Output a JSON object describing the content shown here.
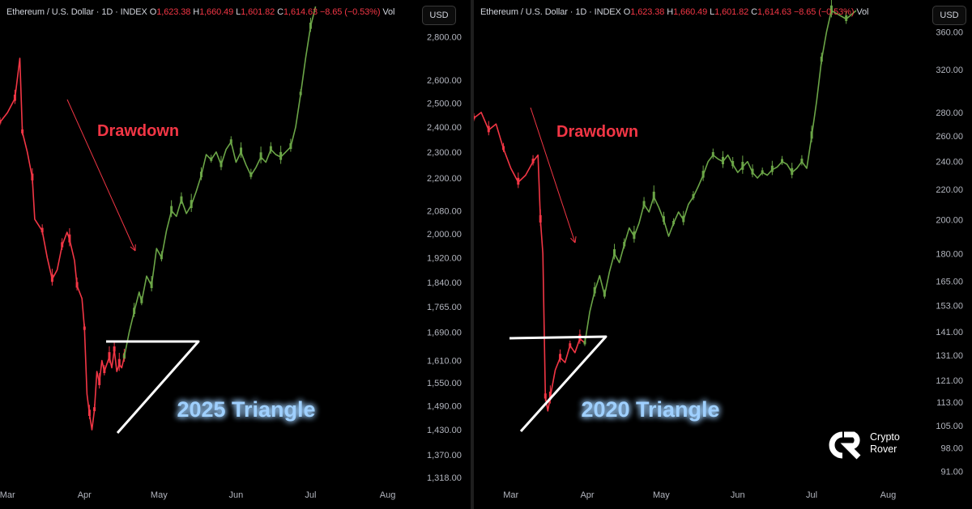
{
  "chart_data": [
    {
      "type": "line",
      "header": {
        "symbol": "Ethereum / U.S. Dollar · 1D · INDEX",
        "o_label": "O",
        "o": "1,623.38",
        "h_label": "H",
        "h": "1,660.49",
        "l_label": "L",
        "l": "1,601.82",
        "c_label": "C",
        "c": "1,614.63",
        "change": "−8.65 (−0.53%)",
        "vol": "Vol"
      },
      "currency": "USD",
      "y_ticks": [
        "2,800.00",
        "2,600.00",
        "2,500.00",
        "2,400.00",
        "2,300.00",
        "2,200.00",
        "2,080.00",
        "2,000.00",
        "1,920.00",
        "1,840.00",
        "1,765.00",
        "1,690.00",
        "1,610.00",
        "1,550.00",
        "1,490.00",
        "1,430.00",
        "1,370.00",
        "1,318.00"
      ],
      "y_tick_values": [
        2800,
        2600,
        2500,
        2400,
        2300,
        2200,
        2080,
        2000,
        1920,
        1840,
        1765,
        1690,
        1610,
        1550,
        1490,
        1430,
        1370,
        1318
      ],
      "x_ticks": [
        "Mar",
        "Apr",
        "May",
        "Jun",
        "Jul",
        "Aug"
      ],
      "x_tick_days": [
        0,
        31,
        61,
        92,
        122,
        153
      ],
      "annotations": {
        "drawdown": "Drawdown",
        "triangle": "2025 Triangle"
      },
      "ylim": [
        1300,
        2950
      ],
      "xlim": [
        -3,
        160
      ],
      "scale": "log",
      "series": [
        {
          "color": "#f23645",
          "points": [
            [
              -3,
              2420
            ],
            [
              0,
              2460
            ],
            [
              3,
              2520
            ],
            [
              5,
              2700
            ],
            [
              6,
              2380
            ],
            [
              8,
              2300
            ],
            [
              10,
              2200
            ],
            [
              11,
              2050
            ],
            [
              14,
              2010
            ],
            [
              16,
              1920
            ],
            [
              18,
              1850
            ],
            [
              20,
              1880
            ],
            [
              22,
              1960
            ],
            [
              24,
              2005
            ],
            [
              25,
              1980
            ],
            [
              27,
              1910
            ],
            [
              28,
              1830
            ],
            [
              30,
              1790
            ],
            [
              31,
              1700
            ],
            [
              32,
              1520
            ],
            [
              33,
              1470
            ],
            [
              34,
              1430
            ],
            [
              35,
              1480
            ],
            [
              36,
              1580
            ],
            [
              37,
              1550
            ],
            [
              38,
              1610
            ],
            [
              39,
              1580
            ],
            [
              40,
              1600
            ],
            [
              41,
              1620
            ],
            [
              42,
              1590
            ],
            [
              43,
              1640
            ],
            [
              44,
              1580
            ],
            [
              45,
              1600
            ],
            [
              46,
              1590
            ],
            [
              47,
              1620
            ]
          ]
        },
        {
          "color": "#6ba547",
          "points": [
            [
              47,
              1620
            ],
            [
              49,
              1690
            ],
            [
              51,
              1750
            ],
            [
              53,
              1810
            ],
            [
              54,
              1780
            ],
            [
              56,
              1860
            ],
            [
              58,
              1830
            ],
            [
              60,
              1950
            ],
            [
              62,
              1920
            ],
            [
              64,
              2010
            ],
            [
              66,
              2080
            ],
            [
              68,
              2060
            ],
            [
              70,
              2120
            ],
            [
              72,
              2070
            ],
            [
              74,
              2100
            ],
            [
              76,
              2150
            ],
            [
              78,
              2210
            ],
            [
              80,
              2290
            ],
            [
              82,
              2270
            ],
            [
              84,
              2300
            ],
            [
              86,
              2250
            ],
            [
              88,
              2310
            ],
            [
              90,
              2340
            ],
            [
              92,
              2260
            ],
            [
              94,
              2300
            ],
            [
              96,
              2250
            ],
            [
              98,
              2210
            ],
            [
              100,
              2240
            ],
            [
              102,
              2280
            ],
            [
              104,
              2260
            ],
            [
              106,
              2310
            ],
            [
              108,
              2290
            ],
            [
              110,
              2280
            ],
            [
              112,
              2300
            ],
            [
              114,
              2320
            ],
            [
              116,
              2400
            ],
            [
              118,
              2540
            ],
            [
              120,
              2700
            ],
            [
              122,
              2850
            ],
            [
              124,
              2950
            ]
          ]
        }
      ]
    },
    {
      "type": "line",
      "header": {
        "symbol": "Ethereum / U.S. Dollar · 1D · INDEX",
        "o_label": "O",
        "o": "1,623.38",
        "h_label": "H",
        "h": "1,660.49",
        "l_label": "L",
        "l": "1,601.82",
        "c_label": "C",
        "c": "1,614.63",
        "change": "−8.65 (−0.53%)",
        "vol": "Vol"
      },
      "currency": "USD",
      "y_ticks": [
        "360.00",
        "320.00",
        "280.00",
        "260.00",
        "240.00",
        "220.00",
        "200.00",
        "180.00",
        "165.00",
        "153.00",
        "141.00",
        "131.00",
        "121.00",
        "113.00",
        "105.00",
        "98.00",
        "91.00"
      ],
      "y_tick_values": [
        360,
        320,
        280,
        260,
        240,
        220,
        200,
        180,
        165,
        153,
        141,
        131,
        121,
        113,
        105,
        98,
        91
      ],
      "x_ticks": [
        "Mar",
        "Apr",
        "May",
        "Jun",
        "Jul",
        "Aug"
      ],
      "x_tick_days": [
        0,
        31,
        61,
        92,
        122,
        153
      ],
      "annotations": {
        "drawdown": "Drawdown",
        "triangle": "2020 Triangle"
      },
      "ylim": [
        86,
        390
      ],
      "xlim": [
        -15,
        165
      ],
      "scale": "log",
      "series": [
        {
          "color": "#f23645",
          "points": [
            [
              -15,
              275
            ],
            [
              -12,
              280
            ],
            [
              -9,
              265
            ],
            [
              -6,
              270
            ],
            [
              -3,
              250
            ],
            [
              0,
              235
            ],
            [
              3,
              225
            ],
            [
              6,
              230
            ],
            [
              9,
              240
            ],
            [
              11,
              245
            ],
            [
              12,
              200
            ],
            [
              13,
              180
            ],
            [
              14,
              115
            ],
            [
              15,
              110
            ],
            [
              16,
              115
            ],
            [
              18,
              125
            ],
            [
              20,
              130
            ],
            [
              22,
              128
            ],
            [
              24,
              135
            ],
            [
              26,
              132
            ],
            [
              28,
              138
            ],
            [
              30,
              136
            ]
          ]
        },
        {
          "color": "#6ba547",
          "points": [
            [
              30,
              136
            ],
            [
              32,
              150
            ],
            [
              34,
              160
            ],
            [
              36,
              168
            ],
            [
              38,
              158
            ],
            [
              40,
              170
            ],
            [
              42,
              180
            ],
            [
              44,
              175
            ],
            [
              46,
              185
            ],
            [
              48,
              195
            ],
            [
              50,
              190
            ],
            [
              52,
              198
            ],
            [
              54,
              210
            ],
            [
              56,
              205
            ],
            [
              58,
              215
            ],
            [
              60,
              208
            ],
            [
              62,
              200
            ],
            [
              64,
              190
            ],
            [
              66,
              198
            ],
            [
              68,
              205
            ],
            [
              70,
              200
            ],
            [
              72,
              210
            ],
            [
              74,
              215
            ],
            [
              76,
              222
            ],
            [
              78,
              230
            ],
            [
              80,
              240
            ],
            [
              82,
              245
            ],
            [
              84,
              242
            ],
            [
              86,
              240
            ],
            [
              88,
              245
            ],
            [
              90,
              238
            ],
            [
              92,
              232
            ],
            [
              94,
              236
            ],
            [
              96,
              240
            ],
            [
              98,
              232
            ],
            [
              100,
              228
            ],
            [
              102,
              232
            ],
            [
              104,
              230
            ],
            [
              106,
              234
            ],
            [
              108,
              236
            ],
            [
              110,
              240
            ],
            [
              112,
              238
            ],
            [
              114,
              232
            ],
            [
              116,
              235
            ],
            [
              118,
              240
            ],
            [
              120,
              235
            ],
            [
              122,
              260
            ],
            [
              124,
              290
            ],
            [
              126,
              330
            ],
            [
              128,
              360
            ],
            [
              130,
              385
            ],
            [
              133,
              380
            ],
            [
              136,
              375
            ],
            [
              140,
              385
            ]
          ]
        }
      ]
    }
  ],
  "brand": {
    "line1": "Crypto",
    "line2": "Rover"
  }
}
